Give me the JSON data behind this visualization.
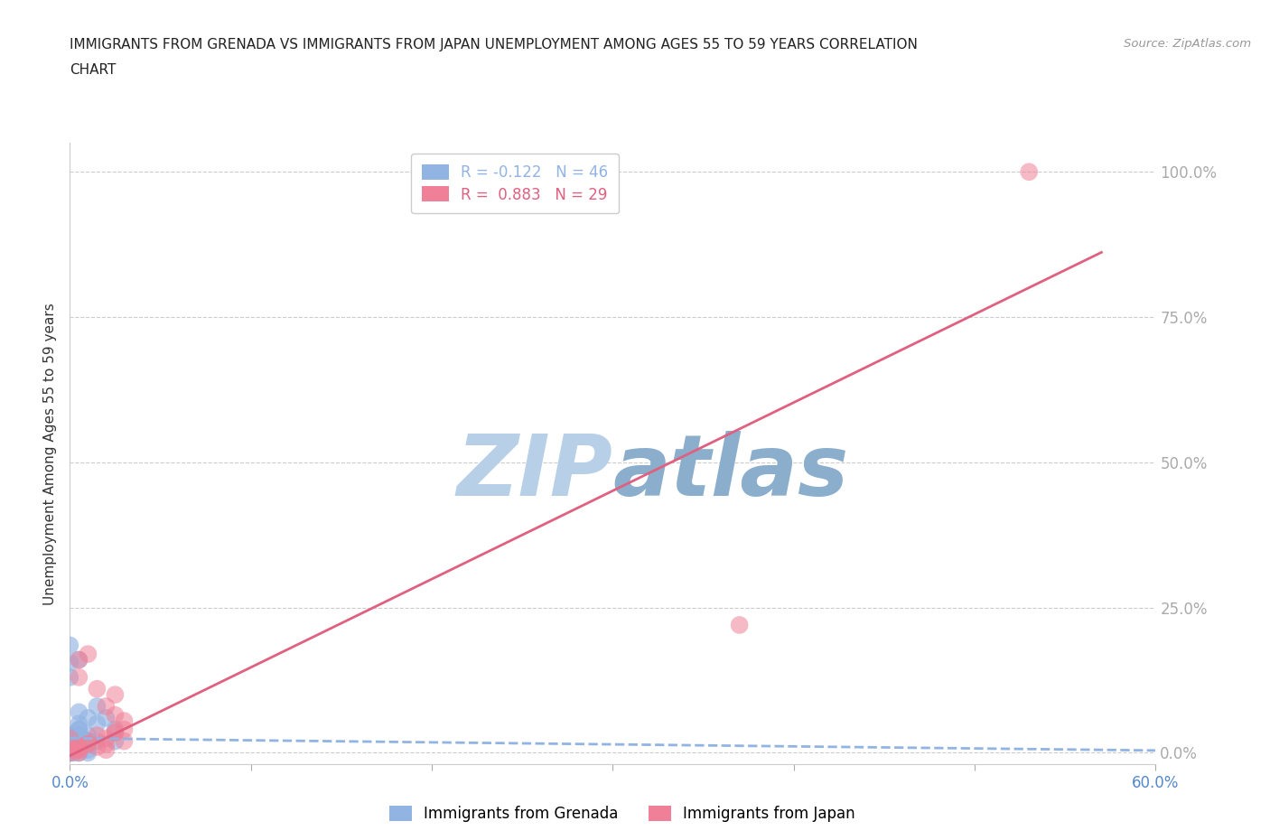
{
  "title_line1": "IMMIGRANTS FROM GRENADA VS IMMIGRANTS FROM JAPAN UNEMPLOYMENT AMONG AGES 55 TO 59 YEARS CORRELATION",
  "title_line2": "CHART",
  "source_text": "Source: ZipAtlas.com",
  "ylabel": "Unemployment Among Ages 55 to 59 years",
  "xlim": [
    0.0,
    0.6
  ],
  "ylim": [
    -0.02,
    1.05
  ],
  "yticks": [
    0.0,
    0.25,
    0.5,
    0.75,
    1.0
  ],
  "ytick_labels": [
    "0.0%",
    "25.0%",
    "50.0%",
    "75.0%",
    "100.0%"
  ],
  "xticks": [
    0.0,
    0.1,
    0.2,
    0.3,
    0.4,
    0.5,
    0.6
  ],
  "xtick_labels": [
    "0.0%",
    "",
    "",
    "",
    "",
    "",
    "60.0%"
  ],
  "grenada_color": "#92b4e3",
  "japan_color": "#f08098",
  "grenada_R": -0.122,
  "grenada_N": 46,
  "japan_R": 0.883,
  "japan_N": 29,
  "background_color": "#ffffff",
  "grid_color": "#cccccc",
  "tick_color": "#5588cc",
  "watermark_color": "#cfdff0",
  "grenada_scatter_x": [
    0.0,
    0.0,
    0.005,
    0.01,
    0.0,
    0.005,
    0.005,
    0.01,
    0.015,
    0.01,
    0.01,
    0.005,
    0.0,
    0.0,
    0.02,
    0.025,
    0.0,
    0.005,
    0.015,
    0.01,
    0.0,
    0.005,
    0.0,
    0.01,
    0.005,
    0.0,
    0.0,
    0.015,
    0.005,
    0.01,
    0.005,
    0.025,
    0.005,
    0.005,
    0.0,
    0.005,
    0.01,
    0.005,
    0.005,
    0.0,
    0.0,
    0.005,
    0.0,
    0.005,
    0.003,
    0.002
  ],
  "grenada_scatter_y": [
    0.185,
    0.155,
    0.16,
    0.0,
    0.13,
    0.07,
    0.05,
    0.06,
    0.08,
    0.03,
    0.02,
    0.04,
    0.02,
    0.03,
    0.06,
    0.04,
    0.01,
    0.03,
    0.05,
    0.02,
    0.02,
    0.01,
    0.0,
    0.02,
    0.04,
    0.03,
    0.01,
    0.02,
    0.01,
    0.005,
    0.0,
    0.02,
    0.01,
    0.03,
    0.02,
    0.01,
    0.02,
    0.03,
    0.01,
    0.01,
    0.0,
    0.01,
    0.02,
    0.015,
    0.005,
    0.0
  ],
  "japan_scatter_x": [
    0.0,
    0.005,
    0.01,
    0.005,
    0.015,
    0.02,
    0.025,
    0.025,
    0.03,
    0.03,
    0.025,
    0.03,
    0.02,
    0.015,
    0.02,
    0.025,
    0.015,
    0.02,
    0.01,
    0.005,
    0.0,
    0.005,
    0.01,
    0.0,
    0.005,
    0.37,
    0.005,
    0.005,
    0.53
  ],
  "japan_scatter_y": [
    0.025,
    0.16,
    0.17,
    0.13,
    0.11,
    0.08,
    0.1,
    0.065,
    0.055,
    0.04,
    0.035,
    0.02,
    0.015,
    0.01,
    0.005,
    0.035,
    0.03,
    0.025,
    0.015,
    0.01,
    0.005,
    0.005,
    0.015,
    0.0,
    0.01,
    0.22,
    0.0,
    0.005,
    1.0
  ],
  "grenada_line_x": [
    0.0,
    0.6
  ],
  "grenada_line_y_start": 0.025,
  "grenada_line_slope": -0.035,
  "japan_line_x": [
    0.0,
    0.57
  ],
  "japan_line_y_start": -0.005,
  "japan_line_slope": 1.52
}
